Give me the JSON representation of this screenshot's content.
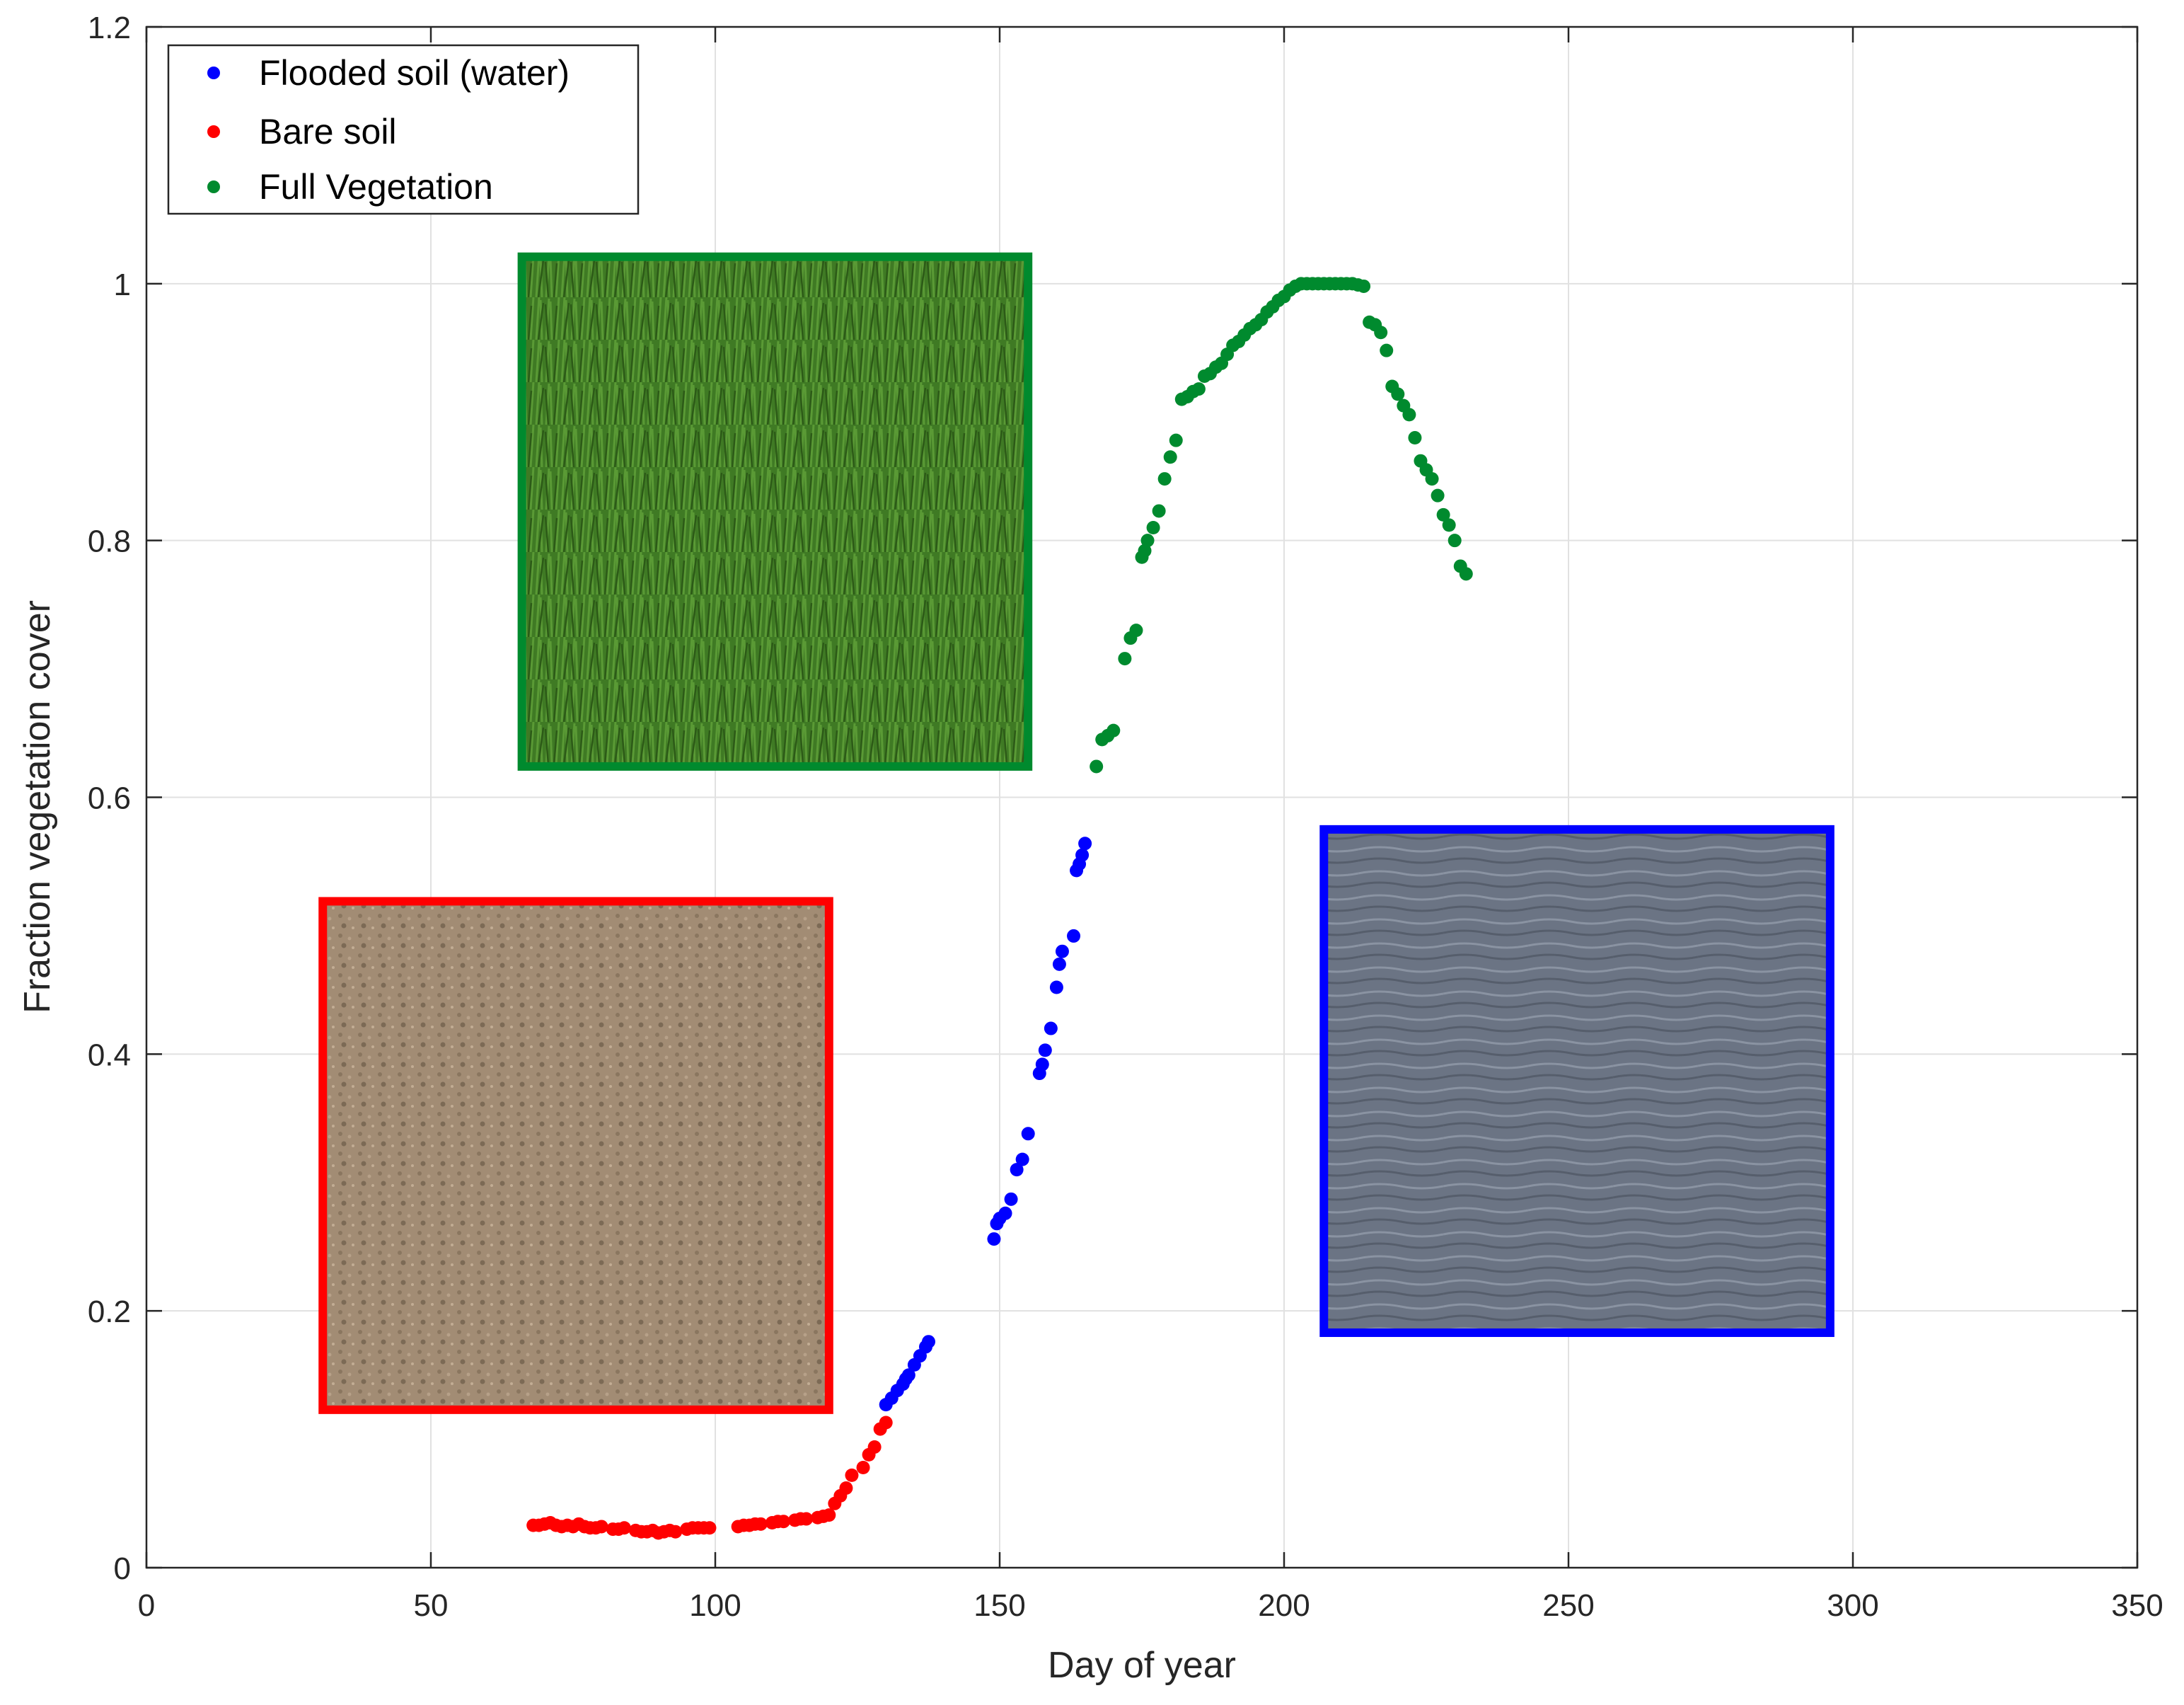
{
  "chart_data": {
    "type": "scatter",
    "title": "",
    "xlabel": "Day of year",
    "ylabel": "Fraction vegetation cover",
    "xlim": [
      0,
      350
    ],
    "ylim": [
      0,
      1.2
    ],
    "xticks": [
      0,
      50,
      100,
      150,
      200,
      250,
      300,
      350
    ],
    "yticks": [
      0,
      0.2,
      0.4,
      0.6,
      0.8,
      1,
      1.2
    ],
    "xtick_labels": [
      "0",
      "50",
      "100",
      "150",
      "200",
      "250",
      "300",
      "350"
    ],
    "ytick_labels": [
      "0",
      "0.2",
      "0.4",
      "0.6",
      "0.8",
      "1",
      "1.2"
    ],
    "grid": true,
    "legend_position": "top-left",
    "series": [
      {
        "name": "Flooded soil (water)",
        "color": "#0000ff",
        "x": [
          130,
          131,
          132,
          133,
          133.5,
          134,
          135,
          136,
          137,
          137.5,
          149,
          149.5,
          150,
          151,
          152,
          153,
          154,
          155,
          157,
          157.5,
          158,
          159,
          160,
          160.5,
          161,
          163,
          163.5,
          164,
          164.5,
          165
        ],
        "y": [
          0.127,
          0.132,
          0.138,
          0.143,
          0.147,
          0.15,
          0.158,
          0.165,
          0.172,
          0.176,
          0.256,
          0.268,
          0.272,
          0.276,
          0.287,
          0.31,
          0.318,
          0.338,
          0.385,
          0.392,
          0.403,
          0.42,
          0.452,
          0.47,
          0.48,
          0.492,
          0.543,
          0.548,
          0.555,
          0.564
        ]
      },
      {
        "name": "Bare soil",
        "color": "#ff0000",
        "x": [
          68,
          69,
          70,
          71,
          72,
          73,
          74,
          75,
          76,
          77,
          78,
          79,
          80,
          82,
          83,
          84,
          86,
          87,
          88,
          89,
          90,
          91,
          92,
          93,
          95,
          96,
          97,
          98,
          99,
          104,
          105,
          106,
          107,
          108,
          110,
          111,
          112,
          114,
          115,
          116,
          118,
          119,
          120,
          121,
          122,
          123,
          124,
          126,
          127,
          128,
          129,
          130
        ],
        "y": [
          0.033,
          0.033,
          0.034,
          0.035,
          0.033,
          0.032,
          0.033,
          0.032,
          0.034,
          0.032,
          0.031,
          0.031,
          0.032,
          0.03,
          0.03,
          0.031,
          0.029,
          0.028,
          0.028,
          0.029,
          0.027,
          0.028,
          0.029,
          0.028,
          0.03,
          0.031,
          0.031,
          0.031,
          0.031,
          0.032,
          0.033,
          0.033,
          0.034,
          0.034,
          0.035,
          0.036,
          0.036,
          0.037,
          0.038,
          0.038,
          0.039,
          0.04,
          0.041,
          0.05,
          0.056,
          0.062,
          0.072,
          0.078,
          0.088,
          0.094,
          0.108,
          0.113
        ]
      },
      {
        "name": "Full Vegetation",
        "color": "#008a2e",
        "x": [
          167,
          168,
          169,
          170,
          172,
          173,
          174,
          175,
          175.5,
          176,
          177,
          178,
          179,
          180,
          181,
          182,
          183,
          184,
          185,
          186,
          187,
          188,
          189,
          190,
          191,
          192,
          193,
          194,
          195,
          196,
          197,
          198,
          199,
          200,
          201,
          202,
          203,
          204,
          205,
          206,
          207,
          208,
          209,
          210,
          211,
          212,
          213,
          214,
          215,
          216,
          217,
          218,
          219,
          220,
          221,
          222,
          223,
          224,
          225,
          226,
          227,
          228,
          229,
          230,
          231,
          232
        ],
        "y": [
          0.624,
          0.645,
          0.648,
          0.652,
          0.708,
          0.724,
          0.73,
          0.787,
          0.792,
          0.8,
          0.81,
          0.823,
          0.848,
          0.865,
          0.878,
          0.91,
          0.912,
          0.916,
          0.918,
          0.928,
          0.93,
          0.935,
          0.938,
          0.945,
          0.952,
          0.955,
          0.96,
          0.965,
          0.968,
          0.972,
          0.978,
          0.982,
          0.987,
          0.99,
          0.995,
          0.998,
          1.0,
          1.0,
          1.0,
          1.0,
          1.0,
          1.0,
          1.0,
          1.0,
          1.0,
          1.0,
          0.999,
          0.998,
          0.97,
          0.968,
          0.962,
          0.948,
          0.92,
          0.914,
          0.905,
          0.898,
          0.88,
          0.862,
          0.855,
          0.848,
          0.835,
          0.82,
          0.812,
          0.8,
          0.78,
          0.774
        ]
      }
    ],
    "insets": [
      {
        "name": "Full Vegetation photo",
        "color": "#008a2e",
        "x_range": [
          66,
          155
        ],
        "y_range": [
          0.624,
          1.021
        ]
      },
      {
        "name": "Bare soil photo",
        "color": "#ff0000",
        "x_range": [
          31,
          120
        ],
        "y_range": [
          0.123,
          0.519
        ]
      },
      {
        "name": "Flooded soil photo",
        "color": "#0000ff",
        "x_range": [
          207,
          296
        ],
        "y_range": [
          0.183,
          0.575
        ]
      }
    ]
  }
}
